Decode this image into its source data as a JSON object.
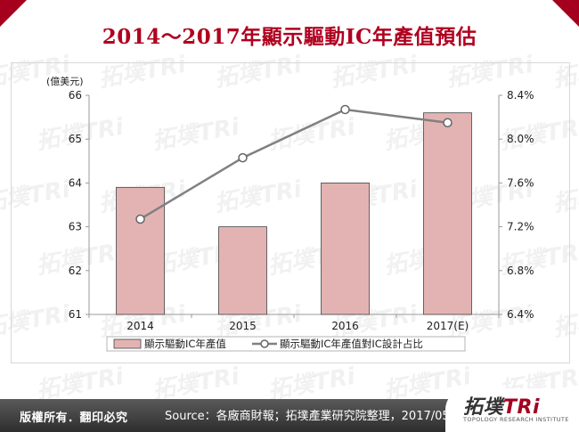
{
  "header": {
    "title": "2014～2017年顯示驅動IC年產值預估"
  },
  "watermark": {
    "text": "拓墣TRi",
    "subtext": "TOPOLOGY RESEARCH INSTITUTE"
  },
  "chart_data": {
    "type": "bar+line",
    "categories": [
      "2014",
      "2015",
      "2016",
      "2017(E)"
    ],
    "y_left_unit": "(億美元)",
    "y_left_range": [
      61,
      66
    ],
    "y_left_ticks": [
      "61",
      "62",
      "63",
      "64",
      "65",
      "66"
    ],
    "y_right_range": [
      6.4,
      8.4
    ],
    "y_right_ticks": [
      "6.4%",
      "6.8%",
      "7.2%",
      "7.6%",
      "8.0%",
      "8.4%"
    ],
    "series": [
      {
        "name": "顯示驅動IC年產值",
        "type": "bar",
        "axis": "left",
        "values": [
          63.9,
          63.0,
          64.0,
          65.6
        ],
        "color": "#e3b3b3"
      },
      {
        "name": "顯示驅動IC年產值對IC設計占比",
        "type": "line",
        "axis": "right",
        "values": [
          7.27,
          7.83,
          8.27,
          8.15
        ],
        "color": "#808080"
      }
    ],
    "legend_position": "bottom",
    "grid": false
  },
  "footer": {
    "copyright": "版權所有．翻印必究",
    "source": "Source：各廠商財報；拓墣產業研究院整理，2017/05"
  },
  "logo": {
    "name_part": "拓墣",
    "tri_part": "TRi",
    "tagline": "TOPOLOGY RESEARCH INSTITUTE"
  },
  "colors": {
    "brand_red": "#a5001e",
    "bar_fill": "#e3b3b3",
    "line_gray": "#808080"
  }
}
